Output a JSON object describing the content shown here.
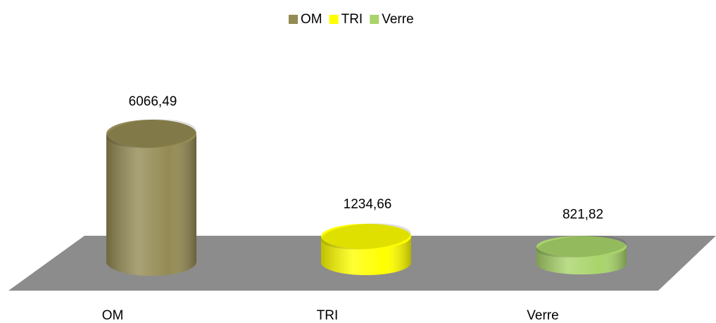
{
  "chart_data": {
    "type": "cylinder",
    "categories": [
      "OM",
      "TRI",
      "Verre"
    ],
    "values": [
      6066.49,
      1234.66,
      821.82
    ],
    "value_labels": [
      "6066,49",
      "1234,66",
      "821,82"
    ],
    "colors": [
      "#948a54",
      "#ffff00",
      "#a9d46b"
    ],
    "legend": "top"
  }
}
